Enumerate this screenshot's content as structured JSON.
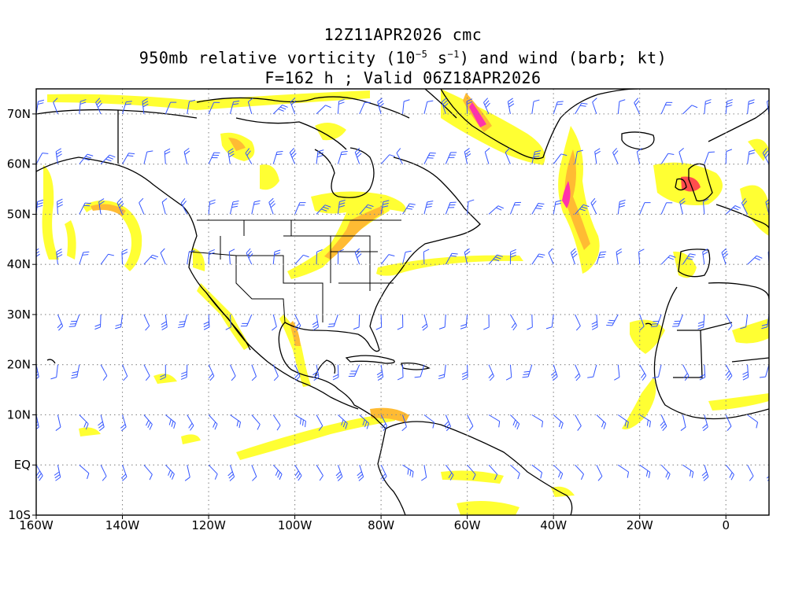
{
  "title": {
    "line1": "12Z11APR2026 cmc",
    "line2_prefix": "950mb relative vorticity (10",
    "line2_exp1": "−5",
    "line2_mid": " s",
    "line2_exp2": "−1",
    "line2_suffix": ") and wind (barb; kt)",
    "line3": "F=162 h ; Valid 06Z18APR2026"
  },
  "axes": {
    "x_ticks": [
      "160W",
      "140W",
      "120W",
      "100W",
      "80W",
      "60W",
      "40W",
      "20W",
      "0"
    ],
    "y_ticks": [
      "70N",
      "60N",
      "50N",
      "40N",
      "30N",
      "20N",
      "10N",
      "EQ",
      "10S"
    ],
    "lon_range": [
      -160,
      10
    ],
    "lat_range": [
      -10,
      75
    ]
  },
  "colors": {
    "shade_light": "#ffff33",
    "shade_mid": "#ffbb33",
    "shade_high": "#ff4d4d",
    "shade_peak": "#ff33aa",
    "barb": "#3355ff",
    "coast": "#000000",
    "grid": "#888888"
  }
}
